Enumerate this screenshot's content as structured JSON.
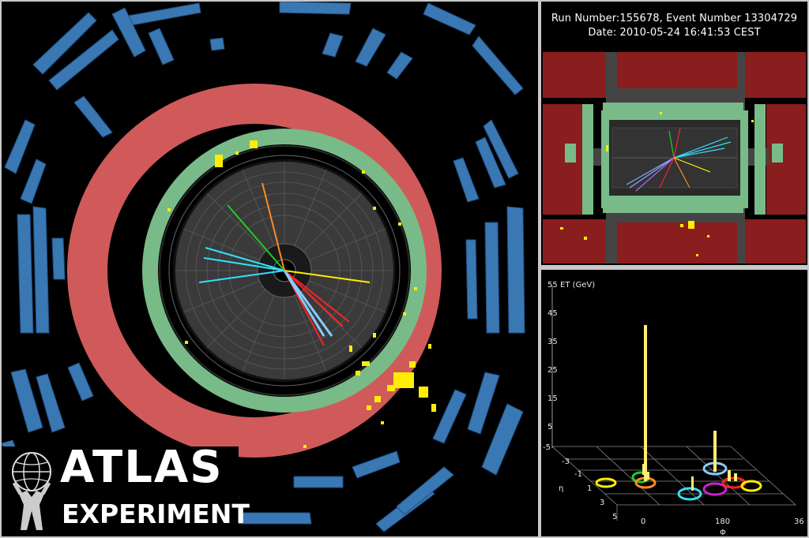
{
  "rz_view": {
    "run_line": "Run Number:155678, Event Number 13304729",
    "date_line": "Date: 2010-05-24 16:41:53 CEST"
  },
  "lego_plot": {
    "et_axis_label": "ET (GeV)",
    "et_ticks": [
      "55",
      "45",
      "35",
      "25",
      "15",
      "5",
      "-5"
    ],
    "eta_label": "η",
    "eta_ticks": [
      "-3",
      "-1",
      "1",
      "3",
      "5"
    ],
    "phi_label": "Φ",
    "phi_ticks": [
      "0",
      "180",
      "36"
    ]
  },
  "logo": {
    "title": "ATLAS",
    "subtitle": "EXPERIMENT"
  },
  "colors": {
    "muon_chambers": "#3a78b4",
    "hadronic_calorimeter": "#d05a5a",
    "em_calorimeter": "#78bb88",
    "inner_detector": "#3a3a3a",
    "energy_deposits": "#ffee00",
    "background": "#000000"
  }
}
